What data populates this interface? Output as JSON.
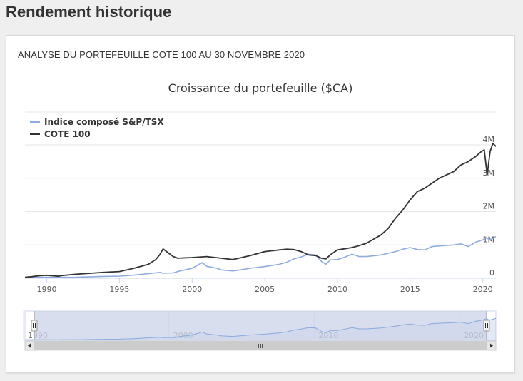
{
  "page": {
    "title": "Rendement historique"
  },
  "card": {
    "heading": "ANALYSE DU PORTEFEUILLE COTE 100 AU 30 NOVEMBRE 2020"
  },
  "colors": {
    "tsx": "#8eacdf",
    "cote": "#333333",
    "grid": "#e6e6e6",
    "navigator_mask": "#ccd3ea",
    "scrollbar": "#e6e6e6"
  },
  "navigator": {
    "labels": [
      "1990",
      "2000",
      "2010",
      "2020"
    ],
    "scroll_grip": "III",
    "left_arrow": "◀",
    "right_arrow": "▶"
  },
  "chart_data": {
    "type": "line",
    "title": "Croissance du portefeuille ($CA)",
    "xlabel": "",
    "ylabel": "",
    "xlim": [
      1988.5,
      2020.9
    ],
    "ylim": [
      0,
      4000000
    ],
    "x_ticks": [
      1990,
      1995,
      2000,
      2005,
      2010,
      2015,
      2020
    ],
    "x_tick_labels": [
      "1990",
      "1995",
      "2000",
      "2005",
      "2010",
      "2015",
      "2020"
    ],
    "y_ticks": [
      0,
      1000000,
      2000000,
      3000000,
      4000000
    ],
    "y_tick_labels": [
      "0",
      "1M",
      "2M",
      "3M",
      "4M"
    ],
    "grid": true,
    "legend_position": "top-left",
    "series": [
      {
        "name": "Indice composé S&P/TSX",
        "color": "#8eacdf",
        "x": [
          1988.5,
          1989,
          1989.5,
          1990,
          1990.8,
          1991,
          1992,
          1993,
          1994,
          1995,
          1996,
          1997,
          1997.8,
          1998,
          1998.7,
          1999,
          1999.5,
          2000,
          2000.7,
          2001,
          2001.7,
          2002,
          2002.8,
          2003,
          2004,
          2005,
          2006,
          2006.5,
          2007,
          2007.5,
          2008,
          2008.5,
          2008.9,
          2009.2,
          2009.5,
          2010,
          2010.5,
          2011,
          2011.5,
          2012,
          2013,
          2014,
          2014.5,
          2015,
          2015.5,
          2016,
          2016.5,
          2017,
          2018,
          2018.5,
          2019,
          2019.5,
          2020,
          2020.2,
          2020.5,
          2020.9
        ],
        "y": [
          25000,
          28000,
          30000,
          30000,
          25000,
          28000,
          30000,
          45000,
          55000,
          65000,
          95000,
          140000,
          175000,
          150000,
          160000,
          200000,
          250000,
          300000,
          470000,
          360000,
          300000,
          250000,
          220000,
          230000,
          300000,
          350000,
          420000,
          480000,
          580000,
          640000,
          720000,
          700000,
          500000,
          420000,
          550000,
          560000,
          630000,
          720000,
          650000,
          650000,
          700000,
          800000,
          870000,
          920000,
          860000,
          850000,
          950000,
          970000,
          1000000,
          1030000,
          950000,
          1080000,
          1150000,
          1220000,
          1150000,
          1250000
        ]
      },
      {
        "name": "COTE 100",
        "color": "#333333",
        "x": [
          1988.5,
          1989,
          1989.5,
          1990,
          1990.8,
          1991,
          1992,
          1993,
          1994,
          1995,
          1996,
          1997,
          1997.5,
          1997.8,
          1998,
          1998.7,
          1999,
          2000,
          2001,
          2002,
          2002.8,
          2003,
          2004,
          2005,
          2006,
          2006.5,
          2007,
          2007.5,
          2008,
          2008.5,
          2008.9,
          2009.2,
          2009.5,
          2010,
          2011,
          2011.5,
          2012,
          2013,
          2013.5,
          2014,
          2014.5,
          2015,
          2015.5,
          2016,
          2016.5,
          2017,
          2017.5,
          2018,
          2018.5,
          2019,
          2019.5,
          2019.9,
          2020.1,
          2020.3,
          2020.5,
          2020.7,
          2020.9
        ],
        "y": [
          30000,
          50000,
          80000,
          90000,
          60000,
          80000,
          120000,
          150000,
          180000,
          200000,
          300000,
          420000,
          560000,
          720000,
          880000,
          650000,
          600000,
          620000,
          650000,
          600000,
          560000,
          580000,
          680000,
          800000,
          850000,
          870000,
          860000,
          800000,
          700000,
          680000,
          600000,
          580000,
          700000,
          850000,
          920000,
          980000,
          1050000,
          1300000,
          1500000,
          1800000,
          2050000,
          2350000,
          2600000,
          2700000,
          2850000,
          3000000,
          3100000,
          3200000,
          3400000,
          3500000,
          3650000,
          3800000,
          3850000,
          3100000,
          3800000,
          4050000,
          3950000
        ]
      }
    ]
  }
}
